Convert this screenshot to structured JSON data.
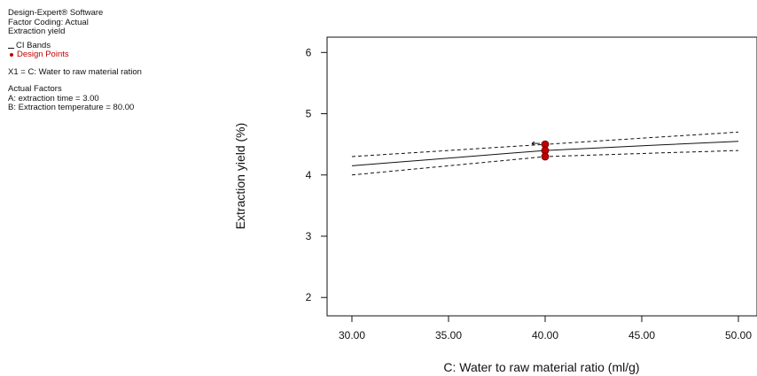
{
  "info": {
    "software": "Design-Expert® Software",
    "factor_coding": "Factor Coding: Actual",
    "response": "Extraction yield",
    "legend": {
      "ci_bands": "CI Bands",
      "design_points": "Design Points"
    },
    "x1": "X1 = C: Water to raw material ration",
    "actual_factors_title": "Actual Factors",
    "factor_a": "A: extraction time = 3.00",
    "factor_b": "B: Extraction temperature = 80.00"
  },
  "colors": {
    "curve": "#111111",
    "design_points": "#c00000"
  },
  "chart_data": {
    "type": "line",
    "xlabel": "C: Water to raw material ratio (ml/g)",
    "ylabel": "Extraction yield (%)",
    "xlim": [
      30,
      50
    ],
    "ylim": [
      1.7,
      6.25
    ],
    "x_ticks": [
      "30.00",
      "35.00",
      "40.00",
      "45.00",
      "50.00"
    ],
    "y_ticks": [
      "2",
      "3",
      "4",
      "5",
      "6"
    ],
    "grid": false,
    "series": [
      {
        "name": "Prediction",
        "style": "solid",
        "x": [
          30,
          32,
          34,
          36,
          38,
          40,
          42,
          44,
          46,
          48,
          50
        ],
        "y": [
          4.15,
          4.2,
          4.25,
          4.3,
          4.35,
          4.4,
          4.43,
          4.46,
          4.49,
          4.52,
          4.55
        ]
      },
      {
        "name": "CI Bands",
        "style": "dashed",
        "x": [
          30,
          32,
          34,
          36,
          38,
          40,
          42,
          44,
          46,
          48,
          50
        ],
        "y": [
          4.3,
          4.34,
          4.38,
          4.42,
          4.46,
          4.5,
          4.54,
          4.58,
          4.62,
          4.66,
          4.7
        ]
      },
      {
        "name": "CI Bands",
        "style": "dashed",
        "x": [
          30,
          32,
          34,
          36,
          38,
          40,
          42,
          44,
          46,
          48,
          50
        ],
        "y": [
          4.0,
          4.06,
          4.12,
          4.18,
          4.24,
          4.3,
          4.32,
          4.34,
          4.36,
          4.38,
          4.4
        ]
      }
    ],
    "design_points": {
      "name": "Design Points",
      "x": [
        40,
        40,
        40
      ],
      "y": [
        4.5,
        4.4,
        4.3
      ]
    }
  }
}
